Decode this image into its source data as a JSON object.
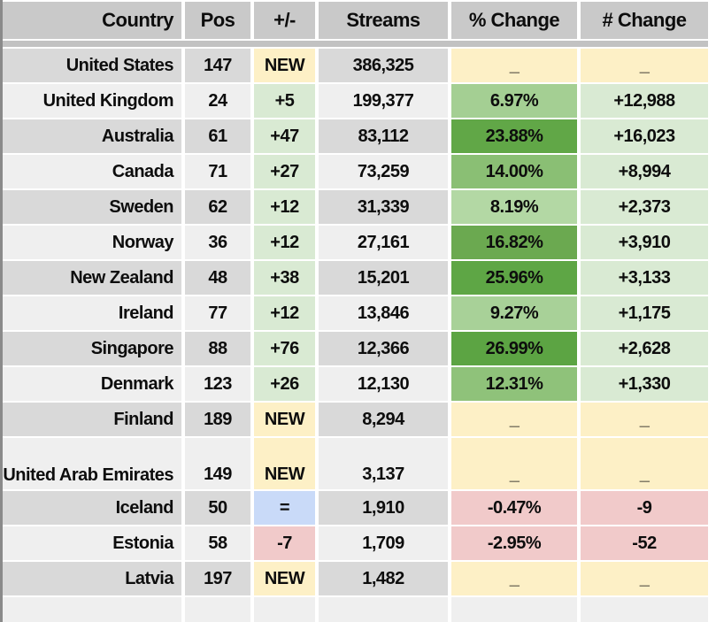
{
  "columns": [
    {
      "key": "country",
      "label": "Country"
    },
    {
      "key": "pos",
      "label": "Pos"
    },
    {
      "key": "delta",
      "label": "+/-"
    },
    {
      "key": "streams",
      "label": "Streams"
    },
    {
      "key": "pct",
      "label": "% Change"
    },
    {
      "key": "num",
      "label": "# Change"
    }
  ],
  "palette": {
    "header_bg": "#c9c9c9",
    "separator_bg": "#c2c2c2",
    "row_dark": "#d9d9d9",
    "row_light": "#efefef",
    "yellow": "#fdf0c6",
    "light_green": "#d9ead3",
    "light_red": "#f1caca",
    "light_blue": "#c9daf8",
    "text": "#0d0d0d",
    "edge_gray": "#8a8a8a"
  },
  "rows": [
    {
      "country": "United States",
      "pos": "147",
      "delta": "NEW",
      "streams": "386,325",
      "pct": "_",
      "num": "_",
      "shade": "dark",
      "delta_bg": "#fdf0c6",
      "pct_bg": "#fdf0c6",
      "num_bg": "#fdf0c6",
      "tall": false
    },
    {
      "country": "United Kingdom",
      "pos": "24",
      "delta": "+5",
      "streams": "199,377",
      "pct": "6.97%",
      "num": "+12,988",
      "shade": "light",
      "delta_bg": "#d9ead3",
      "pct_bg": "#a4cf93",
      "num_bg": "#d9ead3",
      "tall": false
    },
    {
      "country": "Australia",
      "pos": "61",
      "delta": "+47",
      "streams": "83,112",
      "pct": "23.88%",
      "num": "+16,023",
      "shade": "dark",
      "delta_bg": "#d9ead3",
      "pct_bg": "#61a747",
      "num_bg": "#d9ead3",
      "tall": false
    },
    {
      "country": "Canada",
      "pos": "71",
      "delta": "+27",
      "streams": "73,259",
      "pct": "14.00%",
      "num": "+8,994",
      "shade": "light",
      "delta_bg": "#d9ead3",
      "pct_bg": "#8abf74",
      "num_bg": "#d9ead3",
      "tall": false
    },
    {
      "country": "Sweden",
      "pos": "62",
      "delta": "+12",
      "streams": "31,339",
      "pct": "8.19%",
      "num": "+2,373",
      "shade": "dark",
      "delta_bg": "#d9ead3",
      "pct_bg": "#b3d8a4",
      "num_bg": "#d9ead3",
      "tall": false
    },
    {
      "country": "Norway",
      "pos": "36",
      "delta": "+12",
      "streams": "27,161",
      "pct": "16.82%",
      "num": "+3,910",
      "shade": "light",
      "delta_bg": "#d9ead3",
      "pct_bg": "#6ba950",
      "num_bg": "#d9ead3",
      "tall": false
    },
    {
      "country": "New Zealand",
      "pos": "48",
      "delta": "+38",
      "streams": "15,201",
      "pct": "25.96%",
      "num": "+3,133",
      "shade": "dark",
      "delta_bg": "#d9ead3",
      "pct_bg": "#5ea645",
      "num_bg": "#d9ead3",
      "tall": false
    },
    {
      "country": "Ireland",
      "pos": "77",
      "delta": "+12",
      "streams": "13,846",
      "pct": "9.27%",
      "num": "+1,175",
      "shade": "light",
      "delta_bg": "#d9ead3",
      "pct_bg": "#a8d198",
      "num_bg": "#d9ead3",
      "tall": false
    },
    {
      "country": "Singapore",
      "pos": "88",
      "delta": "+76",
      "streams": "12,366",
      "pct": "26.99%",
      "num": "+2,628",
      "shade": "dark",
      "delta_bg": "#d9ead3",
      "pct_bg": "#5ca443",
      "num_bg": "#d9ead3",
      "tall": false
    },
    {
      "country": "Denmark",
      "pos": "123",
      "delta": "+26",
      "streams": "12,130",
      "pct": "12.31%",
      "num": "+1,330",
      "shade": "light",
      "delta_bg": "#d9ead3",
      "pct_bg": "#8fc27a",
      "num_bg": "#d9ead3",
      "tall": false
    },
    {
      "country": "Finland",
      "pos": "189",
      "delta": "NEW",
      "streams": "8,294",
      "pct": "_",
      "num": "_",
      "shade": "dark",
      "delta_bg": "#fdf0c6",
      "pct_bg": "#fdf0c6",
      "num_bg": "#fdf0c6",
      "tall": false
    },
    {
      "country": "United Arab Emirates",
      "pos": "149",
      "delta": "NEW",
      "streams": "3,137",
      "pct": "_",
      "num": "_",
      "shade": "light",
      "delta_bg": "#fdf0c6",
      "pct_bg": "#fdf0c6",
      "num_bg": "#fdf0c6",
      "tall": true
    },
    {
      "country": "Iceland",
      "pos": "50",
      "delta": "=",
      "streams": "1,910",
      "pct": "-0.47%",
      "num": "-9",
      "shade": "dark",
      "delta_bg": "#c9daf8",
      "pct_bg": "#f1caca",
      "num_bg": "#f1caca",
      "tall": false
    },
    {
      "country": "Estonia",
      "pos": "58",
      "delta": "-7",
      "streams": "1,709",
      "pct": "-2.95%",
      "num": "-52",
      "shade": "light",
      "delta_bg": "#f1caca",
      "pct_bg": "#f1caca",
      "num_bg": "#f1caca",
      "tall": false
    },
    {
      "country": "Latvia",
      "pos": "197",
      "delta": "NEW",
      "streams": "1,482",
      "pct": "_",
      "num": "_",
      "shade": "dark",
      "delta_bg": "#fdf0c6",
      "pct_bg": "#fdf0c6",
      "num_bg": "#fdf0c6",
      "tall": false
    }
  ]
}
